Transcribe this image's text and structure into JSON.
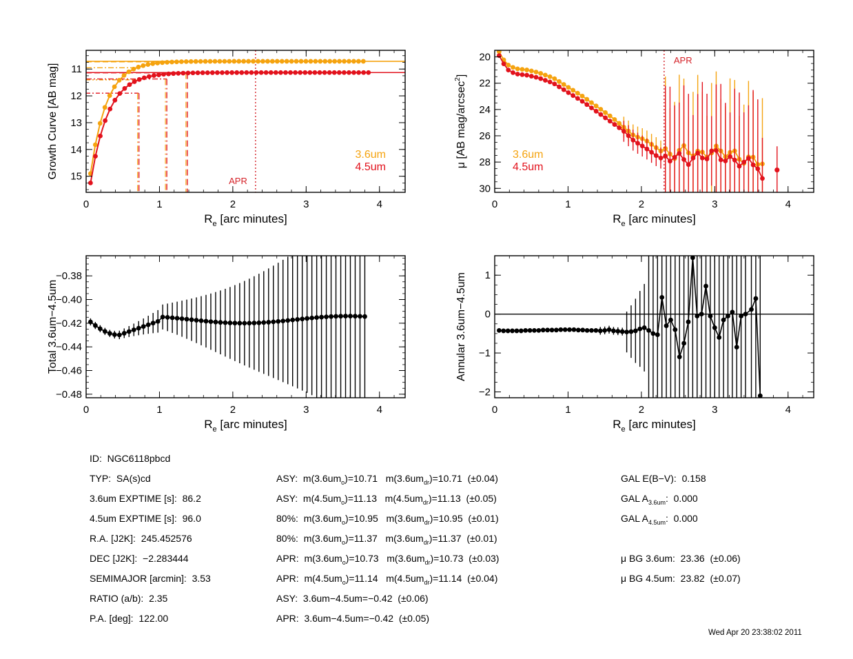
{
  "colors": {
    "ch1": "#f5a30f",
    "ch2": "#e2121c",
    "black": "#000000",
    "apr": "#d41f26"
  },
  "chart_data": [
    {
      "type": "line",
      "name": "growth-curve",
      "xlabel_main": "R",
      "xlabel_sub": "e",
      "xlabel_rest": " [arc minutes]",
      "ylabel": "Growth Curve [AB mag]",
      "xlim": [
        0,
        4.35
      ],
      "ylim": [
        15.6,
        10.3
      ],
      "xticks": [
        0,
        1,
        2,
        3,
        4
      ],
      "yticks": [
        11,
        12,
        13,
        14,
        15
      ],
      "legend": [
        "3.6um",
        "4.5um"
      ],
      "legend_position": "lower-right",
      "apr_label": "APR",
      "apr_x": 2.31,
      "asymptote_ch1": 10.71,
      "asymptote_ch2": 11.13,
      "series": [
        {
          "name": "3.6um",
          "color": "ch1",
          "scale": 0.22,
          "asym": 10.71,
          "start": 14.9,
          "x0": 0.06,
          "x1": 3.78,
          "n": 58
        },
        {
          "name": "4.5um",
          "color": "ch2",
          "scale": 0.24,
          "asym": 11.13,
          "start": 15.25,
          "x0": 0.06,
          "x1": 3.85,
          "n": 58
        }
      ],
      "markers": [
        {
          "x": 0.72,
          "y_top": 11.9,
          "style": "dashdot"
        },
        {
          "x": 1.1,
          "y_top": 11.37,
          "style": "dashdot"
        },
        {
          "x": 1.38,
          "y_top": 11.14,
          "style": "dash"
        }
      ]
    },
    {
      "type": "line",
      "name": "surface-brightness",
      "xlabel_main": "R",
      "xlabel_sub": "e",
      "xlabel_rest": " [arc minutes]",
      "ylabel": "μ [AB mag/arcsec",
      "ylabel_sup": "2",
      "xlim": [
        0,
        4.35
      ],
      "ylim": [
        30.3,
        19.5
      ],
      "xticks": [
        0,
        1,
        2,
        3,
        4
      ],
      "yticks": [
        20,
        22,
        24,
        26,
        28,
        30
      ],
      "legend": [
        "3.6um",
        "4.5um"
      ],
      "legend_position": "lower-left",
      "apr_label": "APR",
      "apr_x": 2.31,
      "profile_x": [
        0.06,
        0.13,
        0.2,
        0.3,
        0.45,
        0.6,
        0.8,
        1.0,
        1.2,
        1.4,
        1.6,
        1.75,
        1.9,
        2.05,
        2.2,
        2.3,
        2.45,
        2.6,
        2.8,
        3.0,
        3.2,
        3.4,
        3.6,
        3.67
      ],
      "profile_ch1": [
        19.6,
        20.3,
        20.7,
        20.9,
        21.0,
        21.2,
        21.6,
        22.3,
        23.0,
        23.8,
        24.6,
        25.3,
        26.0,
        26.3,
        26.9,
        27.3,
        27.4,
        27.0,
        27.5,
        27.1,
        27.3,
        27.8,
        27.9,
        28.0
      ],
      "profile_ch2": [
        19.9,
        20.6,
        21.1,
        21.3,
        21.4,
        21.6,
        22.0,
        22.7,
        23.4,
        24.2,
        25.0,
        25.6,
        26.4,
        26.9,
        27.5,
        27.8,
        27.5,
        27.9,
        27.6,
        27.3,
        27.9,
        28.0,
        28.2,
        29.9
      ],
      "outlier": {
        "x": 3.85,
        "y": 28.6
      }
    },
    {
      "type": "line",
      "name": "total-color",
      "xlabel_main": "R",
      "xlabel_sub": "e",
      "xlabel_rest": " [arc minutes]",
      "ylabel": "Total 3.6um−4.5um",
      "xlim": [
        0,
        4.35
      ],
      "ylim": [
        -0.483,
        -0.363
      ],
      "xticks": [
        0,
        1,
        2,
        3,
        4
      ],
      "yticks": [
        -0.38,
        -0.4,
        -0.42,
        -0.44,
        -0.46,
        -0.48
      ],
      "ytick_labels": [
        "−0.38",
        "−0.40",
        "−0.42",
        "−0.44",
        "−0.46",
        "−0.48"
      ],
      "x0": 0.06,
      "x1": 3.8,
      "n": 58
    },
    {
      "type": "line",
      "name": "annular-color",
      "xlabel_main": "R",
      "xlabel_sub": "e",
      "xlabel_rest": " [arc minutes]",
      "ylabel": "Annular 3.6um−4.5um",
      "xlim": [
        0,
        4.35
      ],
      "ylim": [
        -2.15,
        1.5
      ],
      "xticks": [
        0,
        1,
        2,
        3,
        4
      ],
      "yticks": [
        1,
        0,
        -1,
        -2
      ],
      "ytick_labels": [
        "1",
        "0",
        "−1",
        "−2"
      ],
      "x": [
        0.06,
        0.12,
        0.18,
        0.24,
        0.3,
        0.36,
        0.42,
        0.48,
        0.54,
        0.6,
        0.66,
        0.72,
        0.78,
        0.84,
        0.9,
        0.96,
        1.02,
        1.08,
        1.14,
        1.2,
        1.26,
        1.32,
        1.38,
        1.44,
        1.5,
        1.56,
        1.62,
        1.68,
        1.74,
        1.8,
        1.86,
        1.92,
        1.98,
        2.04,
        2.1,
        2.16,
        2.22,
        2.28,
        2.34,
        2.4,
        2.46,
        2.52,
        2.58,
        2.64,
        2.7,
        2.76,
        2.82,
        2.88,
        2.94,
        3.0,
        3.06,
        3.12,
        3.18,
        3.24,
        3.3,
        3.36,
        3.42,
        3.5,
        3.56,
        3.62
      ],
      "y": [
        -0.42,
        -0.43,
        -0.43,
        -0.43,
        -0.43,
        -0.43,
        -0.42,
        -0.42,
        -0.42,
        -0.42,
        -0.41,
        -0.41,
        -0.41,
        -0.41,
        -0.4,
        -0.4,
        -0.4,
        -0.4,
        -0.41,
        -0.41,
        -0.42,
        -0.42,
        -0.42,
        -0.43,
        -0.42,
        -0.4,
        -0.43,
        -0.44,
        -0.45,
        -0.46,
        -0.45,
        -0.43,
        -0.38,
        -0.35,
        -0.42,
        -0.5,
        -0.53,
        0.43,
        -0.3,
        -0.15,
        -0.4,
        -1.1,
        -0.75,
        -0.2,
        1.45,
        -0.05,
        0.0,
        0.72,
        -0.05,
        -0.35,
        -0.6,
        -0.15,
        -0.05,
        0.05,
        -0.85,
        -0.05,
        0.0,
        0.12,
        0.4,
        -2.1
      ]
    }
  ],
  "info": {
    "col1": [
      {
        "label": "ID:",
        "value": "NGC6118pbcd"
      },
      {
        "label": "TYP:",
        "value": "SA(s)cd"
      },
      {
        "label": "3.6um EXPTIME [s]:",
        "value": "86.2"
      },
      {
        "label": "4.5um EXPTIME [s]:",
        "value": "96.0"
      },
      {
        "label": "R.A. [J2K]:",
        "value": "245.452576"
      },
      {
        "label": "DEC [J2K]:",
        "value": "−2.283444"
      },
      {
        "label": "SEMIMAJOR [arcmin]:",
        "value": "3.53"
      },
      {
        "label": "RATIO (a/b):",
        "value": "2.35"
      },
      {
        "label": "P.A. [deg]:",
        "value": "122.00"
      }
    ],
    "col2": [
      {
        "tag": "ASY:",
        "band": "3.6um",
        "m1": "10.71",
        "m2": "10.71",
        "err": "(±0.04)"
      },
      {
        "tag": "ASY:",
        "band": "4.5um",
        "m1": "11.13",
        "m2": "11.13",
        "err": "(±0.05)"
      },
      {
        "tag": "80%:",
        "band": "3.6um",
        "m1": "10.95",
        "m2": "10.95",
        "err": "(±0.01)"
      },
      {
        "tag": "80%:",
        "band": "3.6um",
        "m1": "11.37",
        "m2": "11.37",
        "err": "(±0.01)"
      },
      {
        "tag": "APR:",
        "band": "3.6um",
        "m1": "10.73",
        "m2": "10.73",
        "err": "(±0.03)"
      },
      {
        "tag": "APR:",
        "band": "4.5um",
        "m1": "11.14",
        "m2": "11.14",
        "err": "(±0.04)"
      }
    ],
    "col2_colors": [
      {
        "tag": "ASY:",
        "text": "3.6um−4.5um=−0.42  (±0.06)"
      },
      {
        "tag": "APR:",
        "text": "3.6um−4.5um=−0.42  (±0.05)"
      }
    ],
    "col3": [
      {
        "label": "GAL E(B−V):",
        "value": "0.158"
      },
      {
        "label": "GAL A",
        "sub": "3.6um",
        "rest": ":",
        "value": "0.000"
      },
      {
        "label": "GAL A",
        "sub": "4.5um",
        "rest": ":",
        "value": "0.000"
      },
      {
        "label": "μ BG 3.6um:",
        "value": "23.36  (±0.06)"
      },
      {
        "label": "μ BG 4.5um:",
        "value": "23.82  (±0.07)"
      }
    ],
    "timestamp": "Wed Apr 20 23:38:02 2011"
  }
}
